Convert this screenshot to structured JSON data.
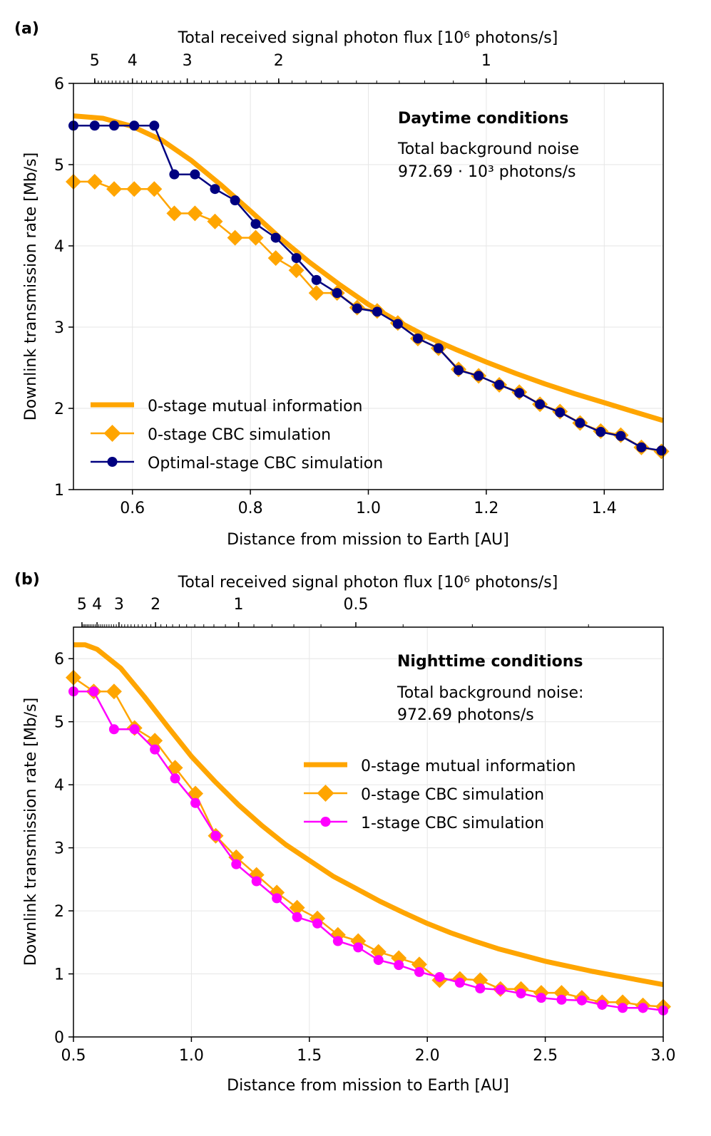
{
  "chart_data": [
    {
      "type": "line",
      "panel_label": "(a)",
      "top_axis_label": "Total received signal photon flux [10⁶ photons/s]",
      "top_ticks": [
        {
          "label": "5",
          "x": 0.536
        },
        {
          "label": "4",
          "x": 0.6
        },
        {
          "label": "3",
          "x": 0.693
        },
        {
          "label": "2",
          "x": 0.848
        },
        {
          "label": "1",
          "x": 1.2
        }
      ],
      "xlabel": "Distance from mission to Earth [AU]",
      "ylabel": "Downlink transmission rate [Mb/s]",
      "xlim": [
        0.5,
        1.5
      ],
      "ylim": [
        1,
        6
      ],
      "xticks": [
        0.6,
        0.8,
        1.0,
        1.2,
        1.4
      ],
      "xtick_labels": [
        "0.6",
        "0.8",
        "1.0",
        "1.2",
        "1.4"
      ],
      "yticks": [
        1,
        2,
        3,
        4,
        5,
        6
      ],
      "ytick_labels": [
        "1",
        "2",
        "3",
        "4",
        "5",
        "6"
      ],
      "annotation": {
        "title": "Daytime conditions",
        "line1": "Total background noise",
        "line2": "972.69 · 10³ photons/s"
      },
      "legend": {
        "position": "lower-left",
        "entries": [
          "0-stage mutual information",
          "0-stage CBC simulation",
          "Optimal-stage CBC simulation"
        ]
      },
      "colors": {
        "mi": "#ffa500",
        "cbc0": "#ffa500",
        "cbc_opt": "#000080"
      },
      "series": [
        {
          "name": "0-stage mutual information",
          "style": "line",
          "x": [
            0.5,
            0.55,
            0.6,
            0.65,
            0.7,
            0.75,
            0.8,
            0.85,
            0.9,
            0.95,
            1.0,
            1.05,
            1.1,
            1.15,
            1.2,
            1.25,
            1.3,
            1.35,
            1.4,
            1.45,
            1.5
          ],
          "y": [
            5.6,
            5.57,
            5.47,
            5.3,
            5.05,
            4.75,
            4.43,
            4.1,
            3.8,
            3.53,
            3.28,
            3.07,
            2.88,
            2.72,
            2.57,
            2.43,
            2.3,
            2.18,
            2.07,
            1.96,
            1.85
          ]
        },
        {
          "name": "0-stage CBC simulation",
          "style": "diamond",
          "x": [
            0.5,
            0.536,
            0.569,
            0.603,
            0.637,
            0.671,
            0.706,
            0.74,
            0.774,
            0.809,
            0.843,
            0.878,
            0.912,
            0.947,
            0.981,
            1.015,
            1.05,
            1.084,
            1.119,
            1.153,
            1.187,
            1.222,
            1.256,
            1.291,
            1.325,
            1.359,
            1.394,
            1.428,
            1.463,
            1.497
          ],
          "y": [
            4.79,
            4.79,
            4.7,
            4.7,
            4.7,
            4.4,
            4.4,
            4.3,
            4.1,
            4.1,
            3.85,
            3.7,
            3.42,
            3.42,
            3.24,
            3.2,
            3.05,
            2.86,
            2.74,
            2.48,
            2.4,
            2.29,
            2.2,
            2.05,
            1.96,
            1.82,
            1.72,
            1.67,
            1.52,
            1.47
          ]
        },
        {
          "name": "Optimal-stage CBC simulation",
          "style": "circle",
          "x": [
            0.5,
            0.536,
            0.569,
            0.603,
            0.637,
            0.671,
            0.706,
            0.74,
            0.774,
            0.809,
            0.843,
            0.878,
            0.912,
            0.947,
            0.981,
            1.015,
            1.05,
            1.084,
            1.119,
            1.153,
            1.187,
            1.222,
            1.256,
            1.291,
            1.325,
            1.359,
            1.394,
            1.428,
            1.463,
            1.497
          ],
          "y": [
            5.48,
            5.48,
            5.48,
            5.48,
            5.48,
            4.88,
            4.88,
            4.7,
            4.56,
            4.27,
            4.1,
            3.85,
            3.58,
            3.42,
            3.23,
            3.19,
            3.04,
            2.86,
            2.74,
            2.47,
            2.4,
            2.29,
            2.19,
            2.05,
            1.95,
            1.82,
            1.71,
            1.66,
            1.52,
            1.48
          ]
        }
      ]
    },
    {
      "type": "line",
      "panel_label": "(b)",
      "top_axis_label": "Total received signal photon flux [10⁶ photons/s]",
      "top_ticks": [
        {
          "label": "5",
          "x": 0.536
        },
        {
          "label": "4",
          "x": 0.6
        },
        {
          "label": "3",
          "x": 0.693
        },
        {
          "label": "2",
          "x": 0.848
        },
        {
          "label": "1",
          "x": 1.2
        },
        {
          "label": "0.5",
          "x": 1.697
        }
      ],
      "xlabel": "Distance from mission to Earth [AU]",
      "ylabel": "Downlink transmission rate [Mb/s]",
      "xlim": [
        0.5,
        3.0
      ],
      "ylim": [
        0,
        6.5
      ],
      "xticks": [
        0.5,
        1.0,
        1.5,
        2.0,
        2.5,
        3.0
      ],
      "xtick_labels": [
        "0.5",
        "1.0",
        "1.5",
        "2.0",
        "2.5",
        "3.0"
      ],
      "yticks": [
        0,
        1,
        2,
        3,
        4,
        5,
        6
      ],
      "ytick_labels": [
        "0",
        "1",
        "2",
        "3",
        "4",
        "5",
        "6"
      ],
      "annotation": {
        "title": "Nighttime conditions",
        "line1": "Total background noise:",
        "line2": "972.69 photons/s"
      },
      "legend": {
        "position": "center-right",
        "entries": [
          "0-stage mutual information",
          "0-stage CBC simulation",
          "1-stage CBC simulation"
        ]
      },
      "colors": {
        "mi": "#ffa500",
        "cbc0": "#ffa500",
        "cbc1": "#ff00ff"
      },
      "series": [
        {
          "name": "0-stage mutual information",
          "style": "line",
          "x": [
            0.5,
            0.55,
            0.6,
            0.7,
            0.8,
            0.9,
            1.0,
            1.1,
            1.2,
            1.3,
            1.4,
            1.5,
            1.6,
            1.7,
            1.8,
            1.9,
            2.0,
            2.1,
            2.2,
            2.3,
            2.4,
            2.5,
            2.6,
            2.7,
            2.8,
            2.9,
            3.0
          ],
          "y": [
            6.22,
            6.22,
            6.15,
            5.85,
            5.4,
            4.92,
            4.45,
            4.05,
            3.68,
            3.35,
            3.05,
            2.8,
            2.55,
            2.35,
            2.15,
            1.97,
            1.8,
            1.65,
            1.52,
            1.4,
            1.3,
            1.2,
            1.12,
            1.04,
            0.97,
            0.9,
            0.83
          ]
        },
        {
          "name": "0-stage CBC simulation",
          "style": "diamond",
          "x": [
            0.5,
            0.586,
            0.672,
            0.759,
            0.845,
            0.931,
            1.017,
            1.103,
            1.19,
            1.276,
            1.362,
            1.448,
            1.534,
            1.621,
            1.707,
            1.793,
            1.879,
            1.966,
            2.052,
            2.138,
            2.224,
            2.31,
            2.397,
            2.483,
            2.569,
            2.655,
            2.741,
            2.828,
            2.914,
            3.0
          ],
          "y": [
            5.7,
            5.48,
            5.48,
            4.9,
            4.7,
            4.27,
            3.86,
            3.19,
            2.85,
            2.57,
            2.29,
            2.05,
            1.88,
            1.62,
            1.52,
            1.35,
            1.25,
            1.15,
            0.9,
            0.92,
            0.9,
            0.76,
            0.76,
            0.7,
            0.7,
            0.62,
            0.55,
            0.55,
            0.5,
            0.48
          ]
        },
        {
          "name": "1-stage CBC simulation",
          "style": "circle",
          "x": [
            0.5,
            0.586,
            0.672,
            0.759,
            0.845,
            0.931,
            1.017,
            1.103,
            1.19,
            1.276,
            1.362,
            1.448,
            1.534,
            1.621,
            1.707,
            1.793,
            1.879,
            1.966,
            2.052,
            2.138,
            2.224,
            2.31,
            2.397,
            2.483,
            2.569,
            2.655,
            2.741,
            2.828,
            2.914,
            3.0
          ],
          "y": [
            5.48,
            5.48,
            4.88,
            4.88,
            4.56,
            4.1,
            3.71,
            3.19,
            2.74,
            2.47,
            2.2,
            1.9,
            1.8,
            1.52,
            1.42,
            1.22,
            1.14,
            1.03,
            0.95,
            0.86,
            0.77,
            0.75,
            0.69,
            0.62,
            0.59,
            0.58,
            0.51,
            0.46,
            0.46,
            0.42
          ]
        }
      ]
    }
  ]
}
